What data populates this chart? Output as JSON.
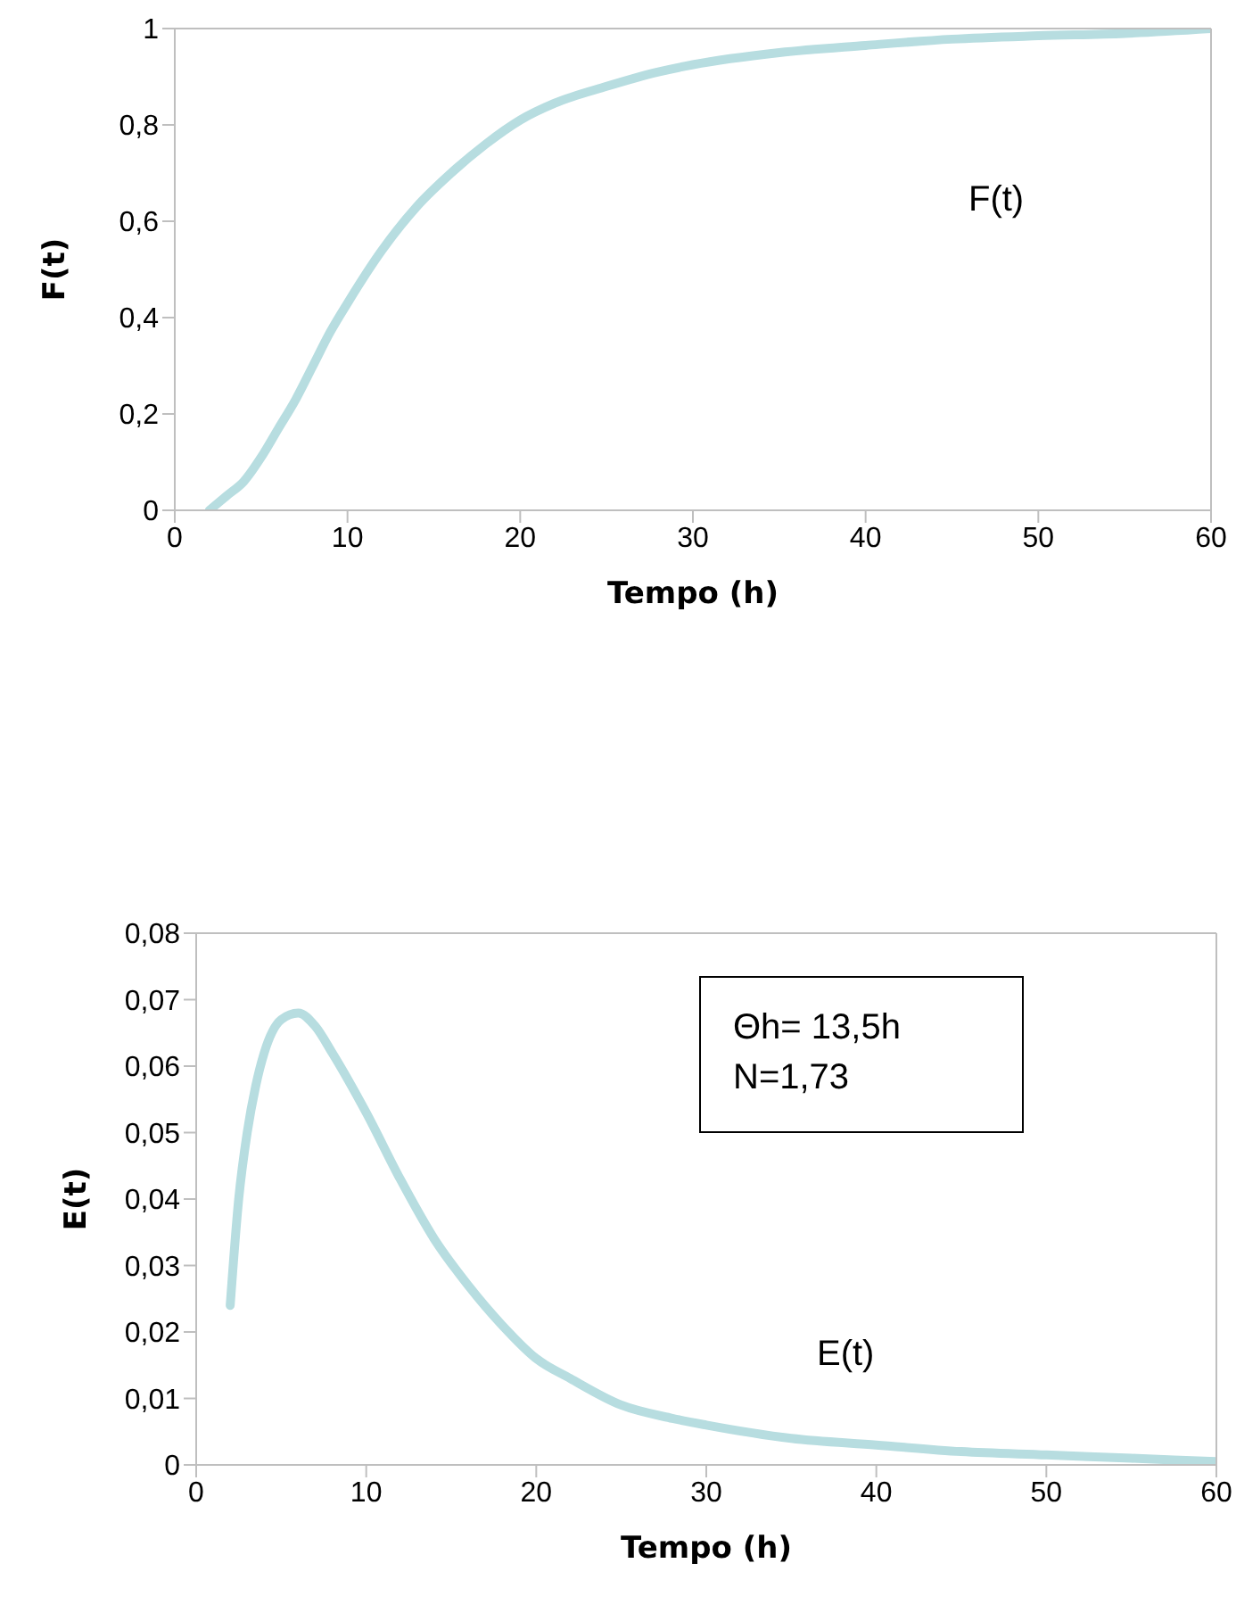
{
  "chart_data": [
    {
      "type": "line",
      "xlabel": "Tempo (h)",
      "ylabel": "F(t)",
      "x": [
        2,
        3,
        4,
        5,
        6,
        7,
        8,
        9,
        10,
        12,
        14,
        16,
        18,
        20,
        22,
        25,
        28,
        30,
        35,
        40,
        45,
        50,
        55,
        60
      ],
      "series": [
        {
          "color": "#b7dde0",
          "values": [
            0,
            0.03,
            0.06,
            0.11,
            0.17,
            0.23,
            0.3,
            0.37,
            0.43,
            0.54,
            0.63,
            0.7,
            0.76,
            0.81,
            0.845,
            0.88,
            0.91,
            0.925,
            0.95,
            0.965,
            0.978,
            0.985,
            0.99,
            1.0
          ]
        }
      ],
      "xlim": [
        0,
        60
      ],
      "xticks": [
        0,
        10,
        20,
        30,
        40,
        50,
        60
      ],
      "ylim": [
        0,
        1
      ],
      "yticks": [
        {
          "value": 0,
          "label": "0"
        },
        {
          "value": 0.2,
          "label": "0,2"
        },
        {
          "value": 0.4,
          "label": "0,4"
        },
        {
          "value": 0.6,
          "label": "0,6"
        },
        {
          "value": 0.8,
          "label": "0,8"
        },
        1
      ],
      "annotations": [
        "F(t)"
      ],
      "grid": false,
      "legend": false,
      "marker": "none",
      "line_style": "solid"
    },
    {
      "type": "line",
      "xlabel": "Tempo (h)",
      "ylabel": "E(t)",
      "x": [
        2,
        2.5,
        3,
        3.5,
        4,
        5,
        6,
        7,
        8,
        10,
        12,
        14,
        16,
        18,
        20,
        22,
        25,
        28,
        30,
        35,
        40,
        45,
        50,
        55,
        60
      ],
      "series": [
        {
          "color": "#b7dde0",
          "values": [
            0.024,
            0.04,
            0.05,
            0.057,
            0.062,
            0.067,
            0.068,
            0.066,
            0.062,
            0.053,
            0.043,
            0.034,
            0.027,
            0.021,
            0.016,
            0.013,
            0.009,
            0.007,
            0.006,
            0.004,
            0.003,
            0.002,
            0.0015,
            0.001,
            0.0005
          ]
        }
      ],
      "xlim": [
        0,
        60
      ],
      "xticks": [
        0,
        10,
        20,
        30,
        40,
        50,
        60
      ],
      "ylim": [
        0,
        0.08
      ],
      "yticks": [
        {
          "value": 0,
          "label": "0"
        },
        {
          "value": 0.01,
          "label": "0,01"
        },
        {
          "value": 0.02,
          "label": "0,02"
        },
        {
          "value": 0.03,
          "label": "0,03"
        },
        {
          "value": 0.04,
          "label": "0,04"
        },
        {
          "value": 0.05,
          "label": "0,05"
        },
        {
          "value": 0.06,
          "label": "0,06"
        },
        {
          "value": 0.07,
          "label": "0,07"
        },
        {
          "value": 0.08,
          "label": "0,08"
        }
      ],
      "annotations": [
        "Θh= 13,5h\nN=1,73",
        "E(t)"
      ],
      "grid": false,
      "legend": false,
      "marker": "none",
      "line_style": "solid"
    }
  ]
}
